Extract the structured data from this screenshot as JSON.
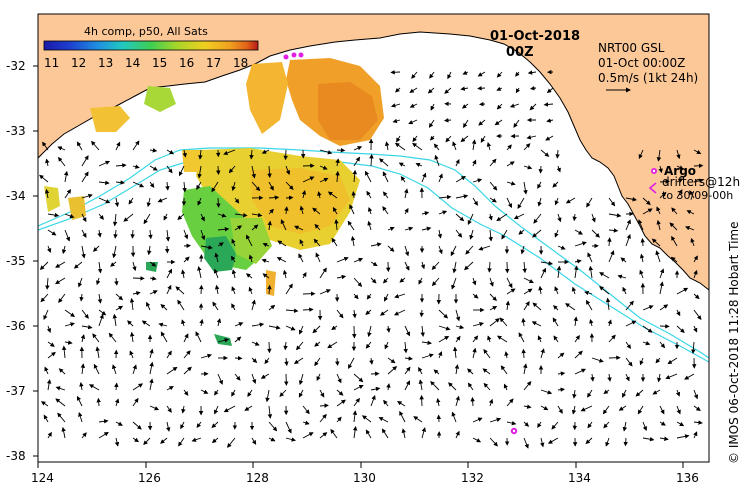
{
  "map": {
    "legend_title": "4h comp, p50, All Sats",
    "colorbar_ticks": [
      "11",
      "12",
      "13",
      "14",
      "15",
      "16",
      "17",
      "18"
    ],
    "colorbar_stops": [
      "#1a1aa8",
      "#1e3fd0",
      "#1f8fe0",
      "#22c9c0",
      "#3fcf52",
      "#a8d62a",
      "#f0d020",
      "#f0a020",
      "#e06018",
      "#b81818"
    ],
    "date": "01-Oct-2018",
    "time": "00Z",
    "product": "NRT00 GSL",
    "product_time": "01-Oct 00:00Z",
    "scale_text": "0.5m/s (1kt 24h)",
    "argo_label": "Argo",
    "drifters_label": "drifters@12h",
    "drifters_to": "to 30/09-00h",
    "side_credit": "© IMOS 06-Oct-2018 11:28 Hobart Time",
    "x_ticks": [
      "124",
      "126",
      "128",
      "130",
      "132",
      "134",
      "136"
    ],
    "y_ticks": [
      "-32",
      "-33",
      "-34",
      "-35",
      "-36",
      "-37",
      "-38"
    ],
    "colors": {
      "land": "#fcc898",
      "shelf": "#3ad6e6",
      "argo": "#e020e0",
      "arrow": "#000000"
    }
  }
}
